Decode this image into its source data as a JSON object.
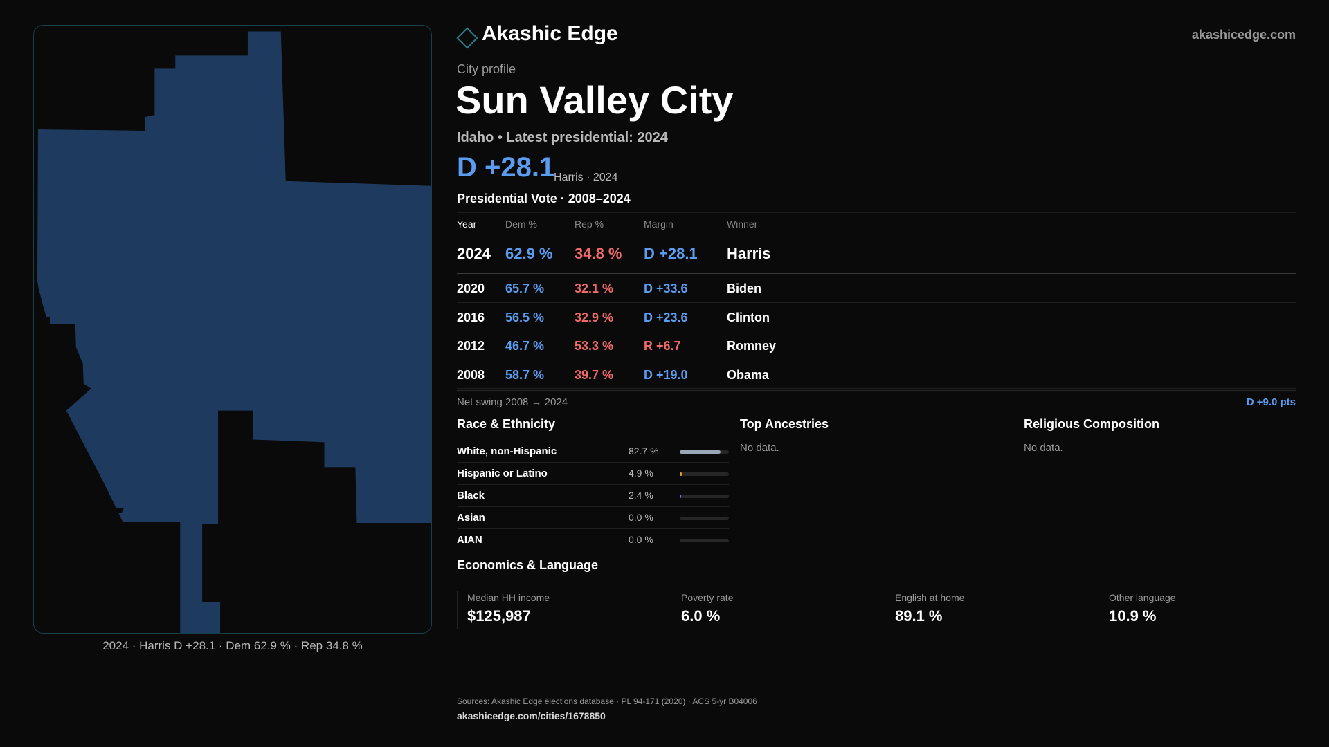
{
  "header": {
    "brand": "Akashic Edge",
    "site": "akashicedge.com"
  },
  "profile": {
    "kicker": "City profile",
    "city": "Sun Valley City",
    "subtitle": "Idaho • Latest presidential: 2024",
    "margin": "D +28.1",
    "margin_detail": "Harris · 2024"
  },
  "map": {
    "caption": "2024 · Harris D +28.1 · Dem 62.9 % · Rep 34.8 %",
    "fill_color": "#1f3a5f"
  },
  "votes": {
    "title": "Presidential Vote · 2008–2024",
    "columns": [
      "Year",
      "Dem %",
      "Rep %",
      "Margin",
      "Winner"
    ],
    "rows": [
      {
        "year": "2024",
        "dem": "62.9 %",
        "rep": "34.8 %",
        "margin": "D +28.1",
        "winner": "Harris"
      },
      {
        "year": "2020",
        "dem": "65.7 %",
        "rep": "32.1 %",
        "margin": "D +33.6",
        "winner": "Biden"
      },
      {
        "year": "2016",
        "dem": "56.5 %",
        "rep": "32.9 %",
        "margin": "D +23.6",
        "winner": "Clinton"
      },
      {
        "year": "2012",
        "dem": "46.7 %",
        "rep": "53.3 %",
        "margin": "R +6.7",
        "winner": "Romney"
      },
      {
        "year": "2008",
        "dem": "58.7 %",
        "rep": "39.7 %",
        "margin": "D +19.0",
        "winner": "Obama"
      }
    ],
    "swing_label": "Net swing 2008 → 2024",
    "swing_value": "D +9.0 pts"
  },
  "race": {
    "title": "Race & Ethnicity",
    "rows": [
      {
        "name": "White, non-Hispanic",
        "pct": "82.7 %",
        "value": 82.7,
        "color": "#9aa7b8"
      },
      {
        "name": "Hispanic or Latino",
        "pct": "4.9 %",
        "value": 4.9,
        "color": "#e0a21b"
      },
      {
        "name": "Black",
        "pct": "2.4 %",
        "value": 2.4,
        "color": "#7b6cd9"
      },
      {
        "name": "Asian",
        "pct": "0.0 %",
        "value": 0.0,
        "color": "#4fb3a0"
      },
      {
        "name": "AIAN",
        "pct": "0.0 %",
        "value": 0.0,
        "color": "#c77d4a"
      }
    ]
  },
  "ancestries": {
    "title": "Top Ancestries",
    "empty": "No data."
  },
  "religion": {
    "title": "Religious Composition",
    "empty": "No data."
  },
  "economics": {
    "title": "Economics & Language",
    "cards": [
      {
        "label": "Median HH income",
        "value": "$125,987"
      },
      {
        "label": "Poverty rate",
        "value": "6.0 %"
      },
      {
        "label": "English at home",
        "value": "89.1 %"
      },
      {
        "label": "Other language",
        "value": "10.9 %"
      }
    ]
  },
  "footer": {
    "sources": "Sources: Akashic Edge elections database · PL 94-171 (2020) · ACS 5-yr B04006",
    "url": "akashicedge.com/cities/1678850"
  },
  "colors": {
    "dem": "#5b9cf0",
    "rep": "#f06a6a",
    "accent": "#2b7d8c"
  }
}
